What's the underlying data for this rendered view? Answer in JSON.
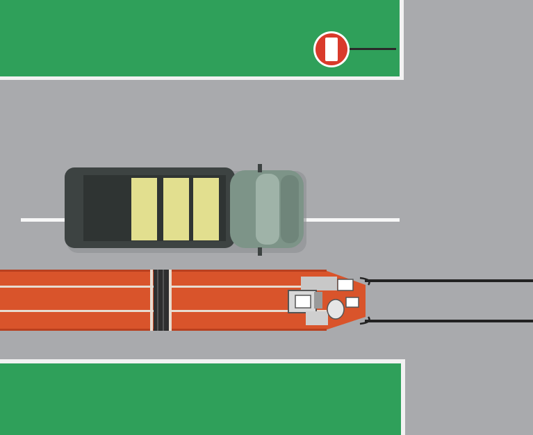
{
  "scene": {
    "description_label": "",
    "colors": {
      "road": "#a9aaad",
      "grass": "#2fa05a",
      "curb": "#f2f2f2",
      "lane_marking": "#f7f7f7",
      "tram_body": "#d9542b",
      "tram_stripe": "#e8dcd0",
      "track_rail": "#222222",
      "truck_cargo": "#3d4342",
      "truck_load": "#e2df8f",
      "truck_cab": "#7d9488",
      "sign_red": "#d93a2b",
      "sign_white": "#ffffff"
    },
    "icons": {
      "sign": "no-entry-sign-icon",
      "truck": "truck-icon",
      "tram": "tram-icon"
    }
  }
}
